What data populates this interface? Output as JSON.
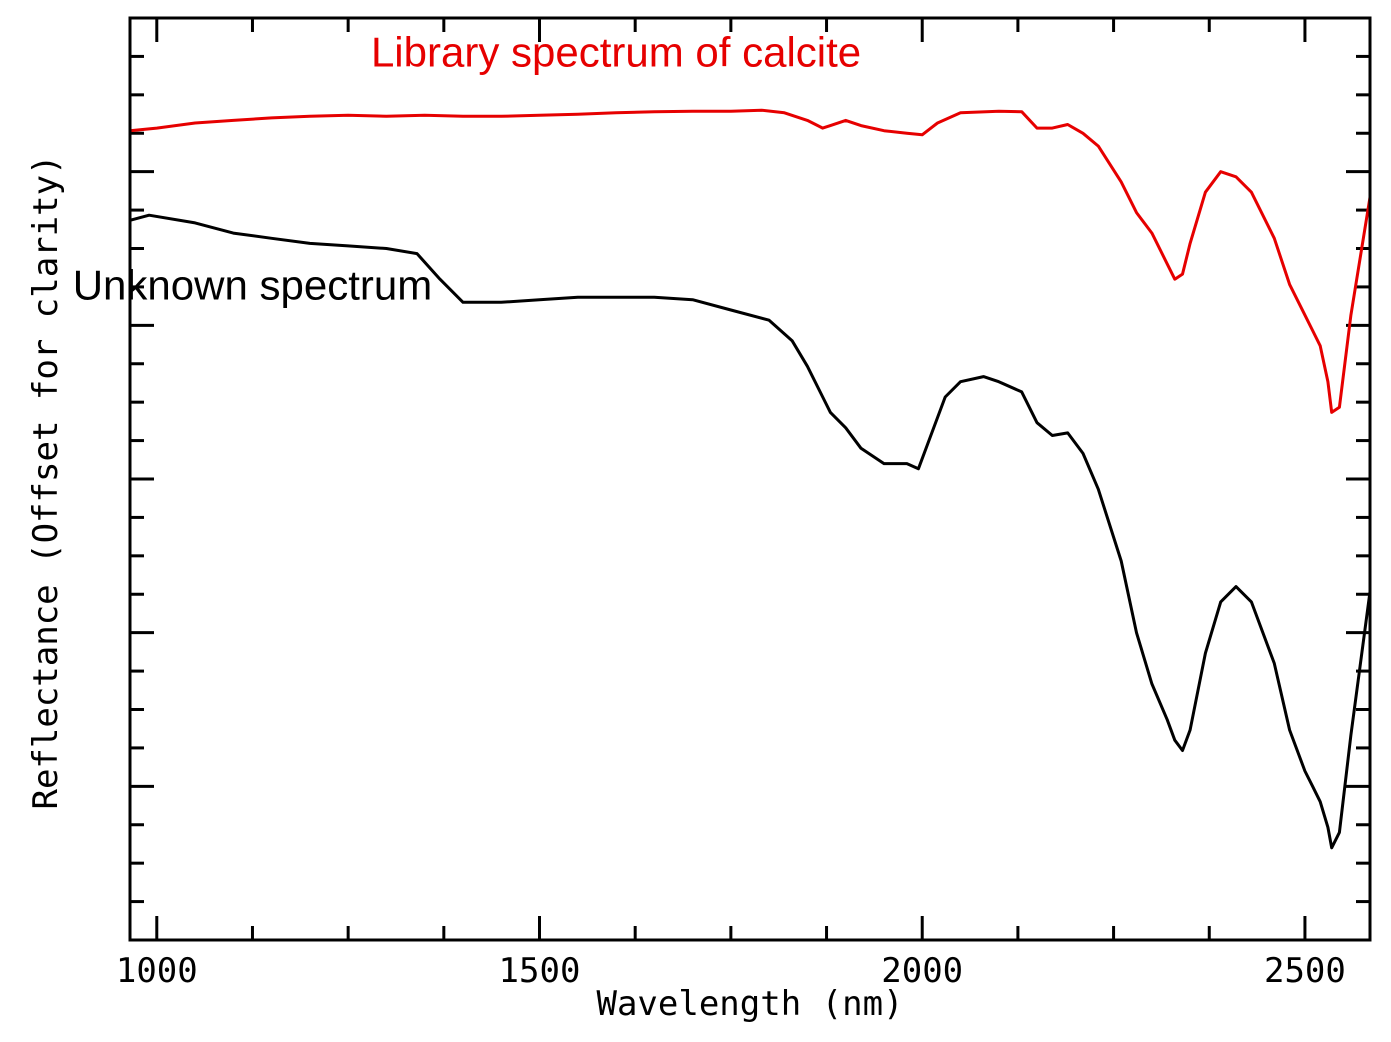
{
  "chart_data": {
    "type": "line",
    "title": "",
    "xlabel": "Wavelength (nm)",
    "ylabel": "Reflectance (Offset for clarity)",
    "xlim": [
      965,
      2585
    ],
    "ylim": [
      0,
      18
    ],
    "xticks": [
      1000,
      1500,
      2000,
      2500
    ],
    "xtick_labels": [
      "1000",
      "1500",
      "2000",
      "2500"
    ],
    "minor_x_step": 125,
    "y_tick_count": 24,
    "y_major_every": 4,
    "grid": false,
    "colors": {
      "library": "#e60000",
      "unknown": "#000000",
      "axis": "#000000"
    },
    "series": [
      {
        "key": "library",
        "x": [
          965,
          1000,
          1050,
          1100,
          1150,
          1200,
          1250,
          1300,
          1350,
          1400,
          1450,
          1500,
          1550,
          1600,
          1650,
          1700,
          1750,
          1790,
          1820,
          1850,
          1870,
          1880,
          1900,
          1920,
          1950,
          1980,
          2000,
          2020,
          2050,
          2100,
          2130,
          2150,
          2170,
          2190,
          2210,
          2230,
          2260,
          2280,
          2300,
          2320,
          2330,
          2340,
          2350,
          2370,
          2390,
          2410,
          2430,
          2460,
          2480,
          2500,
          2510,
          2520,
          2530,
          2535,
          2545,
          2560,
          2585
        ],
        "y": [
          15.8,
          15.85,
          15.95,
          16.0,
          16.05,
          16.08,
          16.1,
          16.08,
          16.1,
          16.08,
          16.08,
          16.1,
          16.12,
          16.15,
          16.17,
          16.18,
          16.18,
          16.2,
          16.15,
          16.0,
          15.85,
          15.9,
          16.0,
          15.9,
          15.8,
          15.75,
          15.72,
          15.95,
          16.15,
          16.18,
          16.17,
          15.85,
          15.85,
          15.92,
          15.75,
          15.5,
          14.8,
          14.2,
          13.8,
          13.2,
          12.9,
          13.0,
          13.6,
          14.6,
          15.0,
          14.9,
          14.6,
          13.7,
          12.8,
          12.2,
          11.9,
          11.6,
          10.9,
          10.3,
          10.4,
          12.2,
          14.5
        ]
      },
      {
        "key": "unknown",
        "x": [
          965,
          990,
          1050,
          1100,
          1150,
          1200,
          1250,
          1300,
          1340,
          1370,
          1400,
          1450,
          1500,
          1550,
          1600,
          1650,
          1700,
          1750,
          1800,
          1830,
          1850,
          1870,
          1880,
          1900,
          1920,
          1950,
          1980,
          1995,
          2010,
          2030,
          2050,
          2080,
          2100,
          2130,
          2150,
          2170,
          2190,
          2210,
          2230,
          2260,
          2280,
          2300,
          2320,
          2330,
          2340,
          2350,
          2370,
          2390,
          2410,
          2430,
          2460,
          2480,
          2500,
          2510,
          2520,
          2530,
          2535,
          2545,
          2560,
          2585
        ],
        "y": [
          14.05,
          14.15,
          14.0,
          13.8,
          13.7,
          13.6,
          13.55,
          13.5,
          13.4,
          12.9,
          12.45,
          12.45,
          12.5,
          12.55,
          12.55,
          12.55,
          12.5,
          12.3,
          12.1,
          11.7,
          11.2,
          10.6,
          10.3,
          10.0,
          9.6,
          9.3,
          9.3,
          9.2,
          9.8,
          10.6,
          10.9,
          11.0,
          10.9,
          10.7,
          10.1,
          9.85,
          9.9,
          9.5,
          8.8,
          7.4,
          6.0,
          5.0,
          4.3,
          3.9,
          3.7,
          4.1,
          5.6,
          6.6,
          6.9,
          6.6,
          5.4,
          4.1,
          3.3,
          3.0,
          2.7,
          2.2,
          1.8,
          2.1,
          4.0,
          6.8
        ]
      }
    ],
    "annotations": {
      "library": {
        "text": "Library spectrum of calcite",
        "x": 1600,
        "y": 17.05
      },
      "unknown": {
        "text": "Unknown spectrum",
        "x": 1125,
        "y": 12.5
      }
    }
  }
}
